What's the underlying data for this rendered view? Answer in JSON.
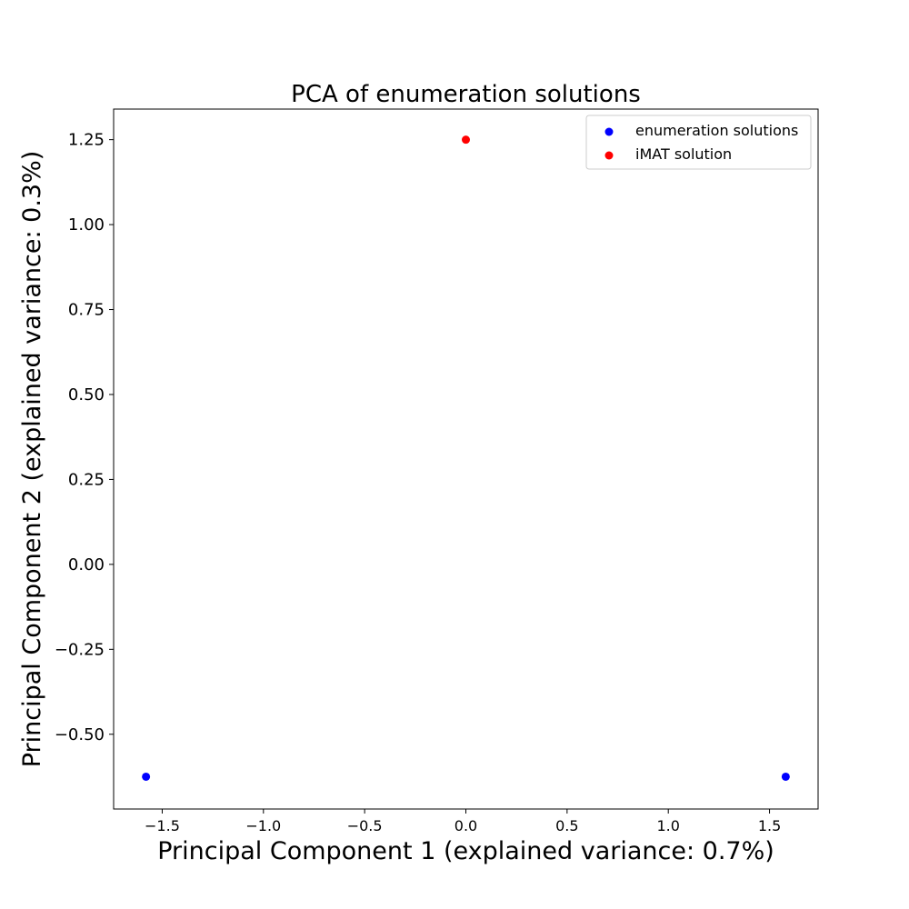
{
  "chart_data": {
    "type": "scatter",
    "title": "PCA of enumeration solutions",
    "xlabel": "Principal Component 1 (explained variance: 0.7%)",
    "ylabel": "Principal Component 2 (explained variance: 0.3%)",
    "xlim": [
      -1.74,
      1.74
    ],
    "ylim": [
      -0.72,
      1.34
    ],
    "xticks": [
      -1.5,
      -1.0,
      -0.5,
      0.0,
      0.5,
      1.0,
      1.5
    ],
    "xtick_labels": [
      "−1.5",
      "−1.0",
      "−0.5",
      "0.0",
      "0.5",
      "1.0",
      "1.5"
    ],
    "yticks": [
      -0.5,
      -0.25,
      0.0,
      0.25,
      0.5,
      0.75,
      1.0,
      1.25
    ],
    "ytick_labels": [
      "−0.50",
      "−0.25",
      "0.00",
      "0.25",
      "0.50",
      "0.75",
      "1.00",
      "1.25"
    ],
    "grid": false,
    "legend_position": "top-right",
    "series": [
      {
        "name": "enumeration solutions",
        "color": "#0000ff",
        "points": [
          {
            "x": -1.58,
            "y": -0.625
          },
          {
            "x": 1.58,
            "y": -0.625
          }
        ]
      },
      {
        "name": "iMAT solution",
        "color": "#ff0000",
        "points": [
          {
            "x": 0.0,
            "y": 1.25
          }
        ]
      }
    ]
  }
}
